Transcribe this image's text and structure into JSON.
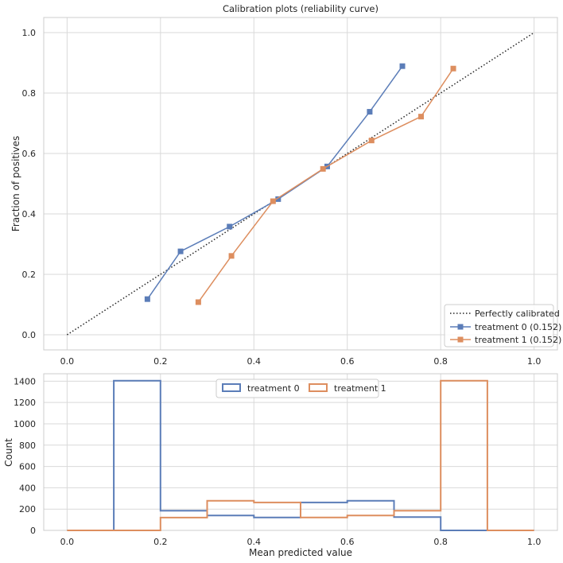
{
  "chart_data": [
    {
      "type": "line",
      "title": "Calibration plots  (reliability curve)",
      "xlabel": "",
      "ylabel": "Fraction of positives",
      "xlim": [
        -0.05,
        1.05
      ],
      "ylim": [
        -0.05,
        1.05
      ],
      "xticks": [
        "0.0",
        "0.2",
        "0.4",
        "0.6",
        "0.8",
        "1.0"
      ],
      "yticks": [
        "0.0",
        "0.2",
        "0.4",
        "0.6",
        "0.8",
        "1.0"
      ],
      "grid": true,
      "legend": "lower-right",
      "reference": {
        "name": "Perfectly calibrated",
        "x": [
          0,
          1
        ],
        "y": [
          0,
          1
        ],
        "color": "#262626"
      },
      "series": [
        {
          "name": "treatment 0 (0.152)",
          "color": "#5b7db8",
          "x": [
            0.172,
            0.243,
            0.348,
            0.452,
            0.557,
            0.648,
            0.718
          ],
          "y": [
            0.118,
            0.276,
            0.358,
            0.449,
            0.557,
            0.738,
            0.889
          ]
        },
        {
          "name": "treatment 1 (0.152)",
          "color": "#dd8e5f",
          "x": [
            0.281,
            0.352,
            0.441,
            0.548,
            0.652,
            0.758,
            0.827
          ],
          "y": [
            0.108,
            0.261,
            0.442,
            0.549,
            0.643,
            0.722,
            0.881
          ]
        }
      ]
    },
    {
      "type": "histogram",
      "title": "",
      "xlabel": "Mean predicted value",
      "ylabel": "Count",
      "xlim": [
        -0.05,
        1.05
      ],
      "ylim": [
        0,
        1470
      ],
      "xticks": [
        "0.0",
        "0.2",
        "0.4",
        "0.6",
        "0.8",
        "1.0"
      ],
      "yticks": [
        "0",
        "200",
        "400",
        "600",
        "800",
        "1000",
        "1200",
        "1400"
      ],
      "grid": true,
      "legend": "top-center",
      "bin_edges": [
        0.0,
        0.1,
        0.2,
        0.3,
        0.4,
        0.5,
        0.6,
        0.7,
        0.8,
        0.9,
        1.0
      ],
      "series": [
        {
          "name": "treatment 0",
          "color": "#5b7db8",
          "values": [
            0,
            1405,
            185,
            140,
            122,
            262,
            278,
            125,
            0,
            0
          ]
        },
        {
          "name": "treatment 1",
          "color": "#dd8e5f",
          "values": [
            0,
            0,
            120,
            278,
            262,
            122,
            140,
            185,
            1405,
            0
          ]
        }
      ]
    }
  ]
}
